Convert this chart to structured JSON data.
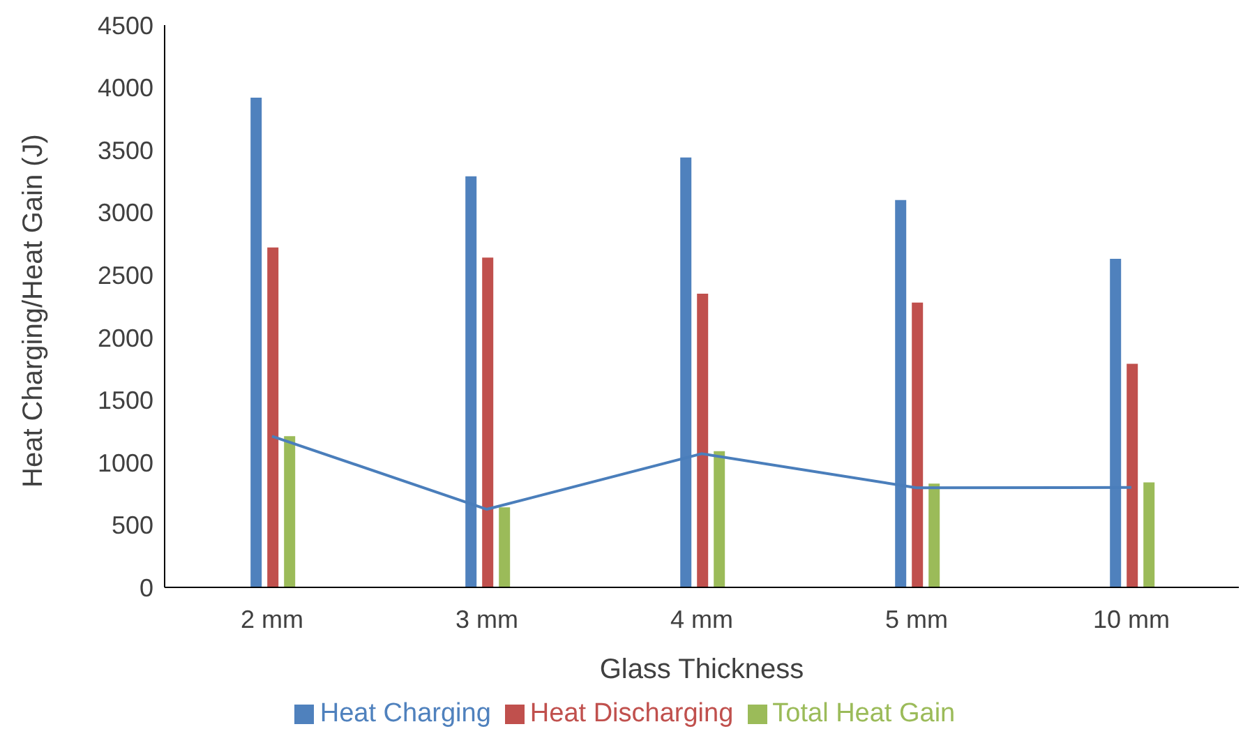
{
  "chart_data": {
    "type": "bar",
    "xlabel": "Glass Thickness",
    "ylabel": "Heat Charging/Heat Gain (J)",
    "categories": [
      "2 mm",
      "3 mm",
      "4 mm",
      "5 mm",
      "10 mm"
    ],
    "series": [
      {
        "name": "Heat Charging",
        "color": "#4f81bd",
        "values": [
          3920,
          3290,
          3440,
          3100,
          2630
        ]
      },
      {
        "name": "Heat Discharging",
        "color": "#c0504d",
        "values": [
          2720,
          2640,
          2350,
          2280,
          1790
        ]
      },
      {
        "name": "Total Heat Gain",
        "color": "#9bbb59",
        "values": [
          1210,
          640,
          1090,
          830,
          840
        ]
      },
      {
        "type": "line",
        "color": "#4a7ebb",
        "values": [
          1210,
          625,
          1070,
          797,
          800
        ]
      }
    ],
    "ylim": [
      0,
      4500
    ],
    "yticks": [
      0,
      500,
      1000,
      1500,
      2000,
      2500,
      3000,
      3500,
      4000,
      4500
    ],
    "legend": "bottom",
    "marker": "none",
    "line_style": "solid"
  }
}
